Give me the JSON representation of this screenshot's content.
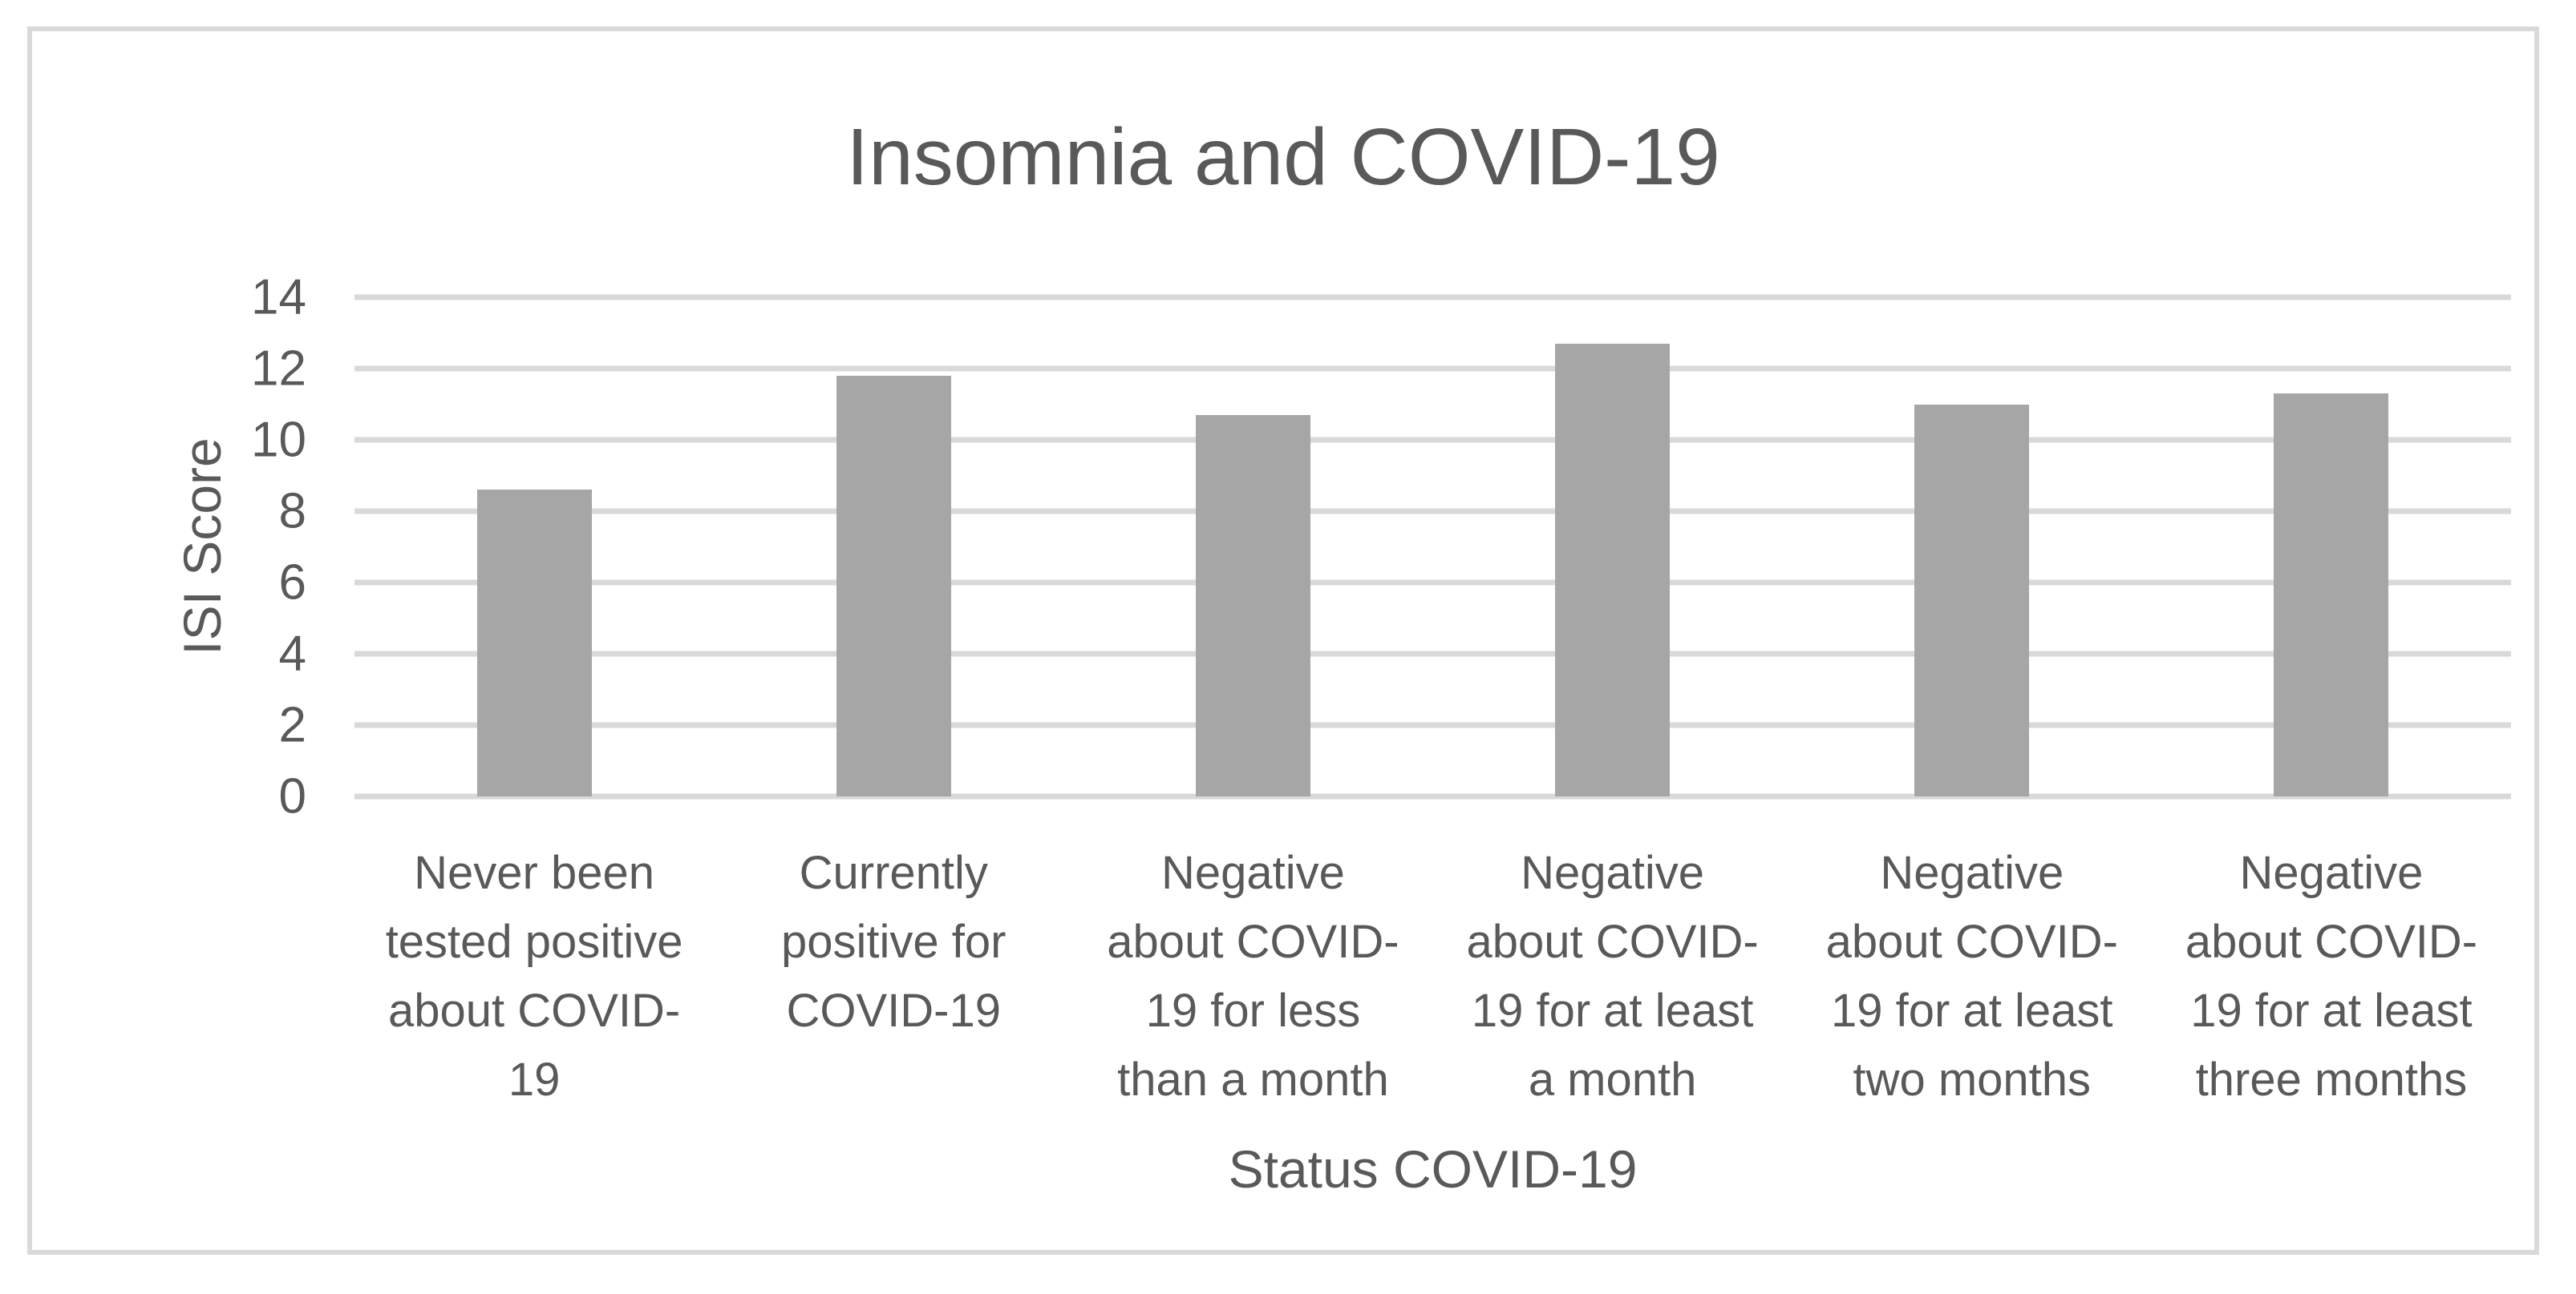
{
  "chart_data": {
    "type": "bar",
    "title": "Insomnia and COVID-19",
    "xlabel": "Status COVID-19",
    "ylabel": "ISI Score",
    "categories": [
      "Never been tested positive about COVID-19",
      "Currently positive for COVID-19",
      "Negative about COVID-19 for less than a month",
      "Negative about COVID-19 for at least a month",
      "Negative about COVID-19 for at least two months",
      "Negative about COVID-19 for at least three months"
    ],
    "category_display_lines": [
      [
        "Never been",
        "tested positive",
        "about COVID-",
        "19"
      ],
      [
        "Currently",
        "positive for",
        "COVID-19"
      ],
      [
        "Negative",
        "about COVID-",
        "19 for less",
        "than a month"
      ],
      [
        "Negative",
        "about COVID-",
        "19 for at least",
        "a month"
      ],
      [
        "Negative",
        "about COVID-",
        "19 for at least",
        "two months"
      ],
      [
        "Negative",
        "about COVID-",
        "19 for at least",
        "three months"
      ]
    ],
    "values": [
      8.6,
      11.8,
      10.7,
      12.7,
      11.0,
      11.3
    ],
    "ylim": [
      0,
      14
    ],
    "yticks": [
      0,
      2,
      4,
      6,
      8,
      10,
      12,
      14
    ],
    "grid": true,
    "legend": false,
    "colors": {
      "bar_fill": "#a6a6a6",
      "gridline": "#d9d9d9",
      "frame_border": "#d9d9d9",
      "text": "#595959",
      "background": "#ffffff"
    }
  }
}
